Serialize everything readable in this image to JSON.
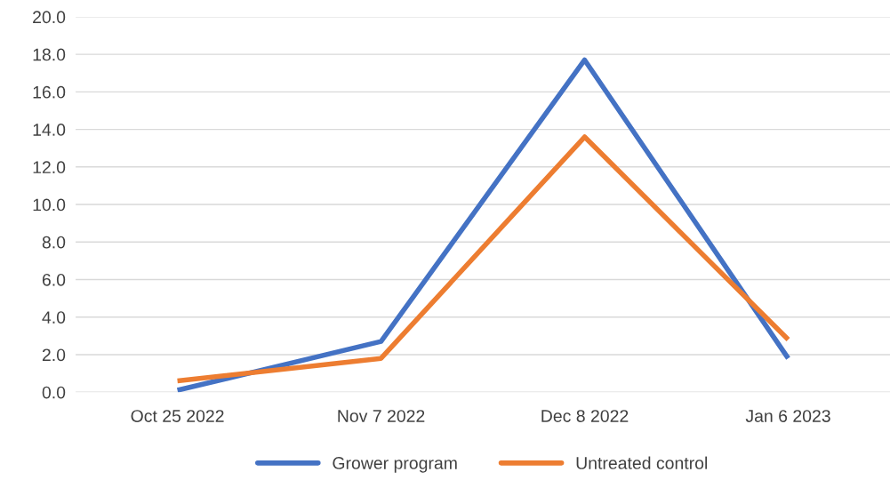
{
  "chart_data": {
    "type": "line",
    "categories": [
      "Oct 25 2022",
      "Nov 7 2022",
      "Dec 8 2022",
      "Jan 6 2023"
    ],
    "series": [
      {
        "name": "Grower program",
        "color": "#4472c4",
        "values": [
          0.1,
          2.7,
          17.7,
          1.8
        ]
      },
      {
        "name": "Untreated control",
        "color": "#ed7d31",
        "values": [
          0.6,
          1.8,
          13.6,
          2.8
        ]
      }
    ],
    "ylim": [
      0,
      20
    ],
    "yticks": [
      {
        "value": 0,
        "label": "0.0"
      },
      {
        "value": 2,
        "label": "2.0"
      },
      {
        "value": 4,
        "label": "4.0"
      },
      {
        "value": 6,
        "label": "6.0"
      },
      {
        "value": 8,
        "label": "8.0"
      },
      {
        "value": 10,
        "label": "10.0"
      },
      {
        "value": 12,
        "label": "12.0"
      },
      {
        "value": 14,
        "label": "14.0"
      },
      {
        "value": 16,
        "label": "16.0"
      },
      {
        "value": 18,
        "label": "18.0"
      },
      {
        "value": 20,
        "label": "20.0"
      }
    ],
    "grid": "y",
    "legend": "bottom",
    "marker": "none",
    "line_style": "solid"
  }
}
